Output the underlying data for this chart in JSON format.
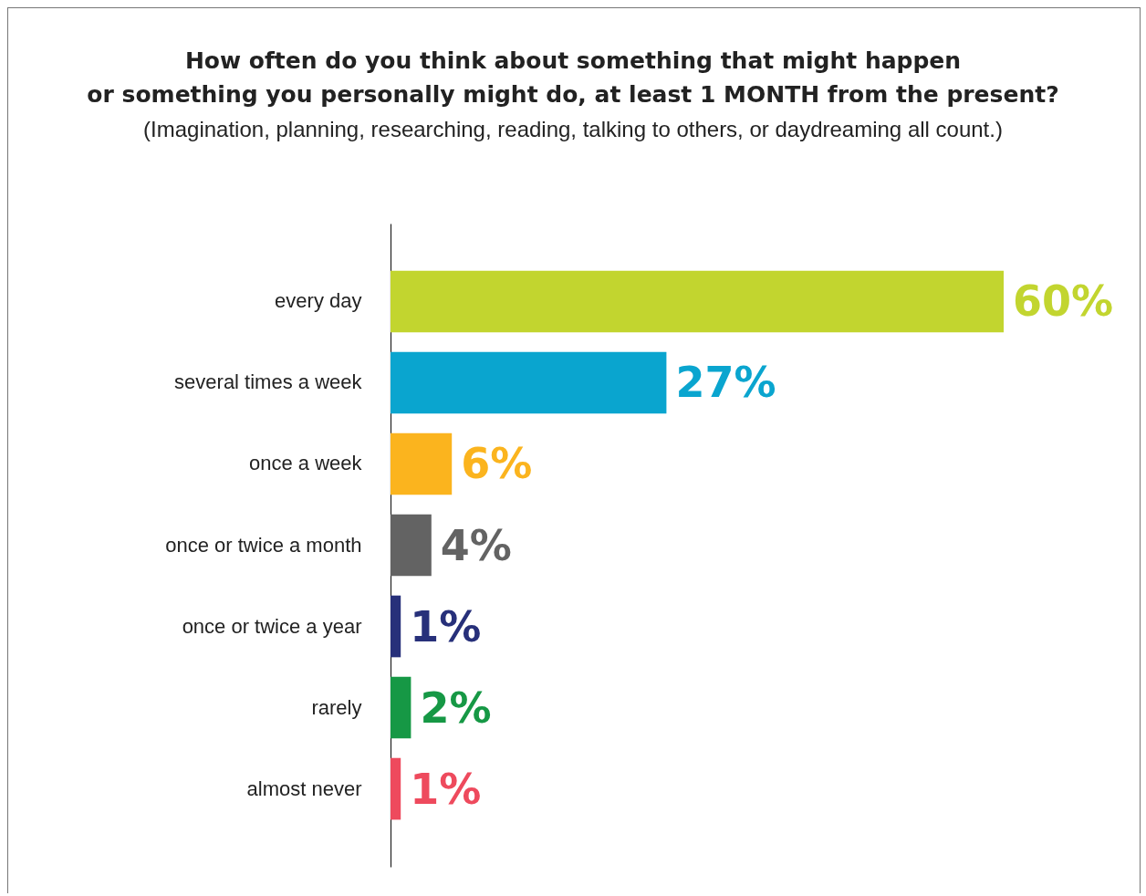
{
  "chart_data": {
    "type": "bar",
    "orientation": "horizontal",
    "title": [
      "How often do you think about something that might happen",
      "or something you personally might do, at least 1 MONTH from the present?"
    ],
    "subtitle": "(Imagination, planning, researching, reading, talking to others, or daydreaming all count.)",
    "categories": [
      "every day",
      "several times a week",
      "once a week",
      "once or twice a month",
      "once or twice a year",
      "rarely",
      "almost never"
    ],
    "values": [
      60,
      27,
      6,
      4,
      1,
      2,
      1
    ],
    "value_labels": [
      "60%",
      "27%",
      "6%",
      "4%",
      "1%",
      "2%",
      "1%"
    ],
    "colors": [
      "#c2d52f",
      "#0aa5cf",
      "#fbb41e",
      "#636363",
      "#27307a",
      "#169845",
      "#ee4a5d"
    ]
  }
}
